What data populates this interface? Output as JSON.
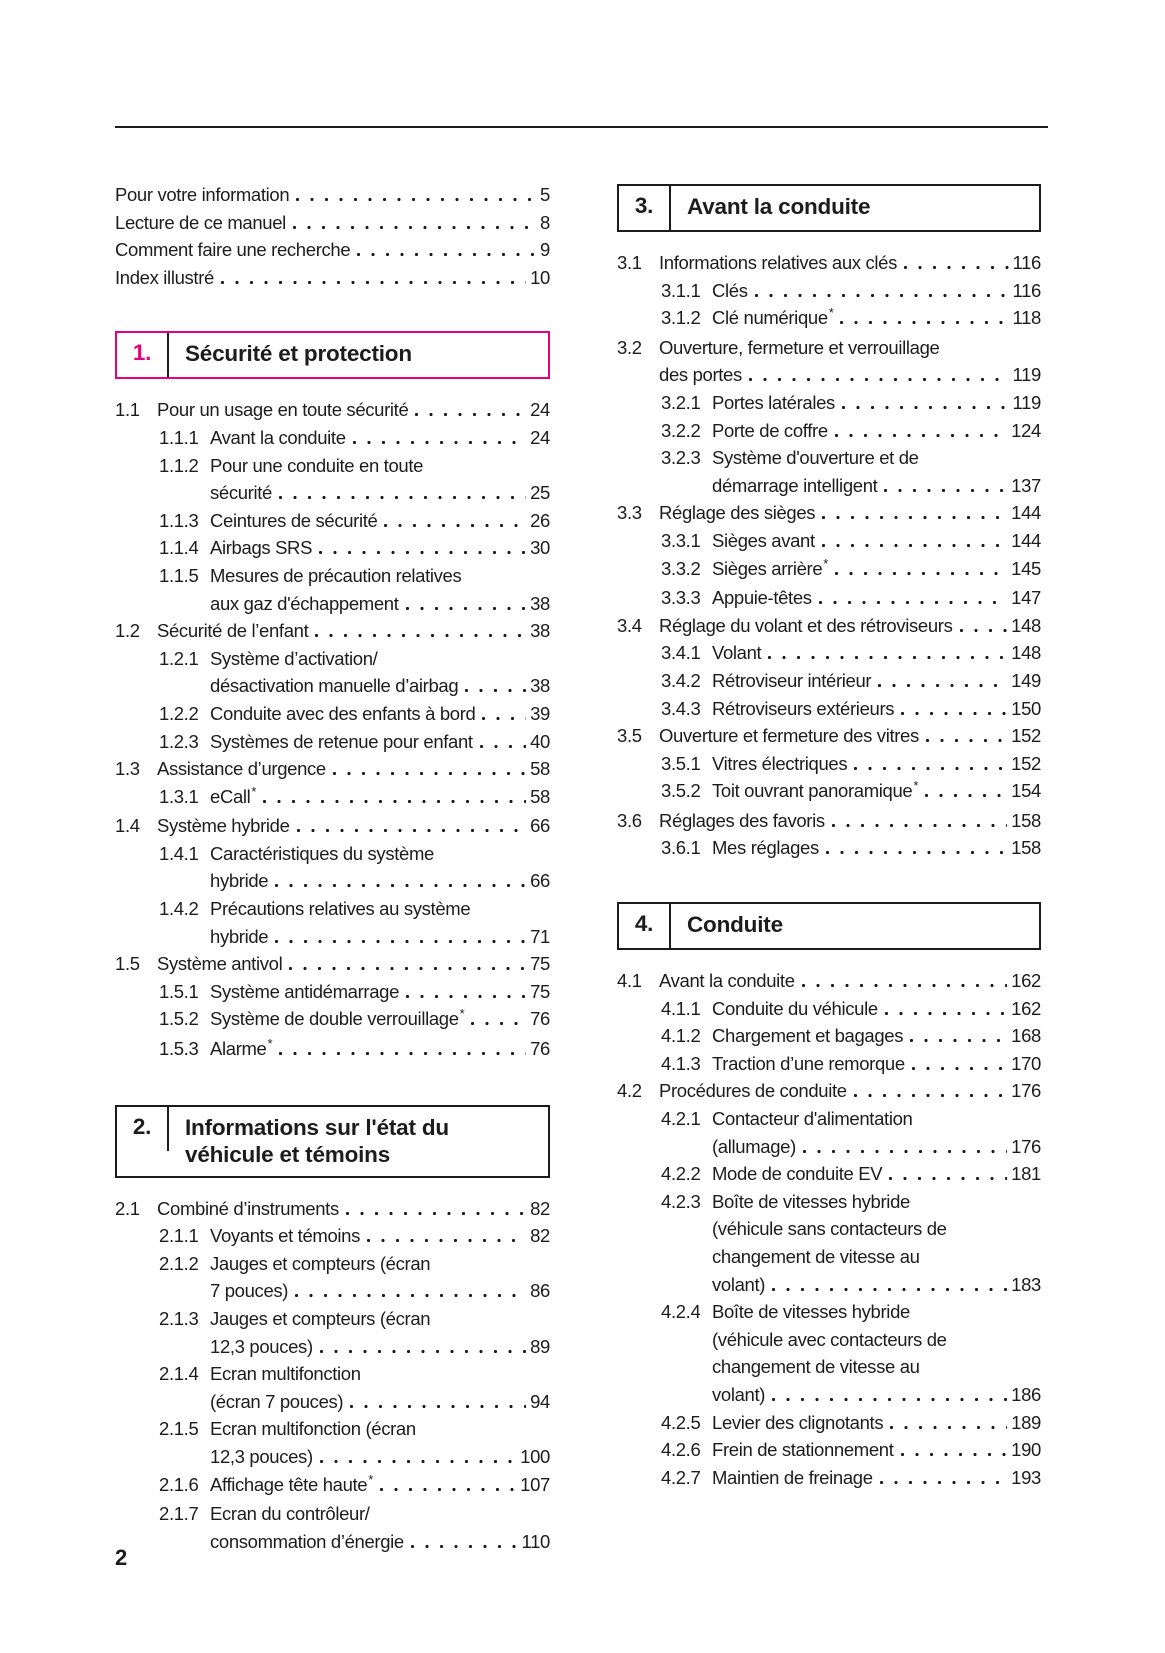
{
  "page": {
    "footer_page_number": "2",
    "accent_color": "#e4007e",
    "text_color": "#1c1c1c"
  },
  "front_matter": [
    {
      "title": "Pour votre information",
      "page": "5"
    },
    {
      "title": "Lecture de ce manuel",
      "page": "8"
    },
    {
      "title": "Comment faire une recherche",
      "page": "9"
    },
    {
      "title": "Index illustré",
      "page": "10"
    }
  ],
  "chapters": [
    {
      "number": "1.",
      "title_lines": [
        "Sécurité et protection"
      ],
      "accent_color": "#e4007e",
      "entries": [
        {
          "num": "1.1",
          "lines": [
            "Pour un usage en toute sécurité"
          ],
          "page": "24"
        },
        {
          "num": "1.1.1",
          "lines": [
            "Avant la conduite"
          ],
          "page": "24"
        },
        {
          "num": "1.1.2",
          "lines": [
            "Pour une conduite en toute",
            "sécurité"
          ],
          "page": "25"
        },
        {
          "num": "1.1.3",
          "lines": [
            "Ceintures de sécurité"
          ],
          "page": "26"
        },
        {
          "num": "1.1.4",
          "lines": [
            "Airbags SRS"
          ],
          "page": "30"
        },
        {
          "num": "1.1.5",
          "lines": [
            "Mesures de précaution relatives",
            "aux gaz d'échappement"
          ],
          "page": "38"
        },
        {
          "num": "1.2",
          "lines": [
            "Sécurité de l’enfant"
          ],
          "page": "38"
        },
        {
          "num": "1.2.1",
          "lines": [
            "Système d’activation/",
            "désactivation manuelle d’airbag"
          ],
          "page": "38"
        },
        {
          "num": "1.2.2",
          "lines": [
            "Conduite avec des enfants à bord"
          ],
          "page": "39"
        },
        {
          "num": "1.2.3",
          "lines": [
            "Systèmes de retenue pour enfant"
          ],
          "page": "40"
        },
        {
          "num": "1.3",
          "lines": [
            "Assistance d’urgence"
          ],
          "page": "58"
        },
        {
          "num": "1.3.1",
          "lines": [
            "eCall"
          ],
          "star": "*",
          "page": "58"
        },
        {
          "num": "1.4",
          "lines": [
            "Système hybride"
          ],
          "page": "66"
        },
        {
          "num": "1.4.1",
          "lines": [
            "Caractéristiques du système",
            "hybride"
          ],
          "page": "66"
        },
        {
          "num": "1.4.2",
          "lines": [
            "Précautions relatives au système",
            "hybride"
          ],
          "page": "71"
        },
        {
          "num": "1.5",
          "lines": [
            "Système antivol"
          ],
          "page": "75"
        },
        {
          "num": "1.5.1",
          "lines": [
            "Système antidémarrage"
          ],
          "page": "75"
        },
        {
          "num": "1.5.2",
          "lines": [
            "Système de double verrouillage"
          ],
          "star": "*",
          "page": "76"
        },
        {
          "num": "1.5.3",
          "lines": [
            "Alarme"
          ],
          "star": "*",
          "page": "76"
        }
      ]
    },
    {
      "number": "2.",
      "title_lines": [
        "Informations sur l'état du",
        "véhicule et témoins"
      ],
      "entries": [
        {
          "num": "2.1",
          "lines": [
            "Combiné d’instruments"
          ],
          "page": "82"
        },
        {
          "num": "2.1.1",
          "lines": [
            "Voyants et témoins"
          ],
          "page": "82"
        },
        {
          "num": "2.1.2",
          "lines": [
            "Jauges et compteurs (écran",
            "7 pouces)"
          ],
          "page": "86"
        },
        {
          "num": "2.1.3",
          "lines": [
            "Jauges et compteurs (écran",
            "12,3 pouces)"
          ],
          "page": "89"
        },
        {
          "num": "2.1.4",
          "lines": [
            "Ecran multifonction",
            "(écran 7 pouces)"
          ],
          "page": "94"
        },
        {
          "num": "2.1.5",
          "lines": [
            "Ecran multifonction (écran",
            "12,3 pouces)"
          ],
          "page": "100"
        },
        {
          "num": "2.1.6",
          "lines": [
            "Affichage tête haute"
          ],
          "star": "*",
          "page": "107"
        },
        {
          "num": "2.1.7",
          "lines": [
            "Ecran du contrôleur/",
            "consommation d’énergie"
          ],
          "page": "110"
        }
      ]
    },
    {
      "number": "3.",
      "title_lines": [
        "Avant la conduite"
      ],
      "entries": [
        {
          "num": "3.1",
          "lines": [
            "Informations relatives aux clés"
          ],
          "page": "116"
        },
        {
          "num": "3.1.1",
          "lines": [
            "Clés"
          ],
          "page": "116"
        },
        {
          "num": "3.1.2",
          "lines": [
            "Clé numérique"
          ],
          "star": "*",
          "page": "118"
        },
        {
          "num": "3.2",
          "lines": [
            "Ouverture, fermeture et verrouillage",
            "des portes"
          ],
          "page": "119"
        },
        {
          "num": "3.2.1",
          "lines": [
            "Portes latérales"
          ],
          "page": "119"
        },
        {
          "num": "3.2.2",
          "lines": [
            "Porte de coffre"
          ],
          "page": "124"
        },
        {
          "num": "3.2.3",
          "lines": [
            "Système d'ouverture et de",
            "démarrage intelligent"
          ],
          "page": "137"
        },
        {
          "num": "3.3",
          "lines": [
            "Réglage des sièges"
          ],
          "page": "144"
        },
        {
          "num": "3.3.1",
          "lines": [
            "Sièges avant"
          ],
          "page": "144"
        },
        {
          "num": "3.3.2",
          "lines": [
            "Sièges arrière"
          ],
          "star": "*",
          "page": "145"
        },
        {
          "num": "3.3.3",
          "lines": [
            "Appuie-têtes"
          ],
          "page": "147"
        },
        {
          "num": "3.4",
          "lines": [
            "Réglage du volant et des rétroviseurs"
          ],
          "page": "148"
        },
        {
          "num": "3.4.1",
          "lines": [
            "Volant"
          ],
          "page": "148"
        },
        {
          "num": "3.4.2",
          "lines": [
            "Rétroviseur intérieur"
          ],
          "page": "149"
        },
        {
          "num": "3.4.3",
          "lines": [
            "Rétroviseurs extérieurs"
          ],
          "page": "150"
        },
        {
          "num": "3.5",
          "lines": [
            "Ouverture et fermeture des vitres"
          ],
          "page": "152"
        },
        {
          "num": "3.5.1",
          "lines": [
            "Vitres électriques"
          ],
          "page": "152"
        },
        {
          "num": "3.5.2",
          "lines": [
            "Toit ouvrant panoramique"
          ],
          "star": "*",
          "page": "154"
        },
        {
          "num": "3.6",
          "lines": [
            "Réglages des favoris"
          ],
          "page": "158"
        },
        {
          "num": "3.6.1",
          "lines": [
            "Mes réglages"
          ],
          "page": "158"
        }
      ]
    },
    {
      "number": "4.",
      "title_lines": [
        "Conduite"
      ],
      "entries": [
        {
          "num": "4.1",
          "lines": [
            "Avant la conduite"
          ],
          "page": "162"
        },
        {
          "num": "4.1.1",
          "lines": [
            "Conduite du véhicule"
          ],
          "page": "162"
        },
        {
          "num": "4.1.2",
          "lines": [
            "Chargement et bagages"
          ],
          "page": "168"
        },
        {
          "num": "4.1.3",
          "lines": [
            "Traction d’une remorque"
          ],
          "page": "170"
        },
        {
          "num": "4.2",
          "lines": [
            "Procédures de conduite"
          ],
          "page": "176"
        },
        {
          "num": "4.2.1",
          "lines": [
            "Contacteur d'alimentation",
            "(allumage)"
          ],
          "page": "176"
        },
        {
          "num": "4.2.2",
          "lines": [
            "Mode de conduite EV"
          ],
          "page": "181"
        },
        {
          "num": "4.2.3",
          "lines": [
            "Boîte de vitesses hybride",
            "(véhicule sans contacteurs de",
            "changement de vitesse au",
            "volant)"
          ],
          "page": "183"
        },
        {
          "num": "4.2.4",
          "lines": [
            "Boîte de vitesses hybride",
            "(véhicule avec contacteurs de",
            "changement de vitesse au",
            "volant)"
          ],
          "page": "186"
        },
        {
          "num": "4.2.5",
          "lines": [
            "Levier des clignotants"
          ],
          "page": "189"
        },
        {
          "num": "4.2.6",
          "lines": [
            "Frein de stationnement"
          ],
          "page": "190"
        },
        {
          "num": "4.2.7",
          "lines": [
            "Maintien de freinage"
          ],
          "page": "193"
        }
      ]
    }
  ]
}
